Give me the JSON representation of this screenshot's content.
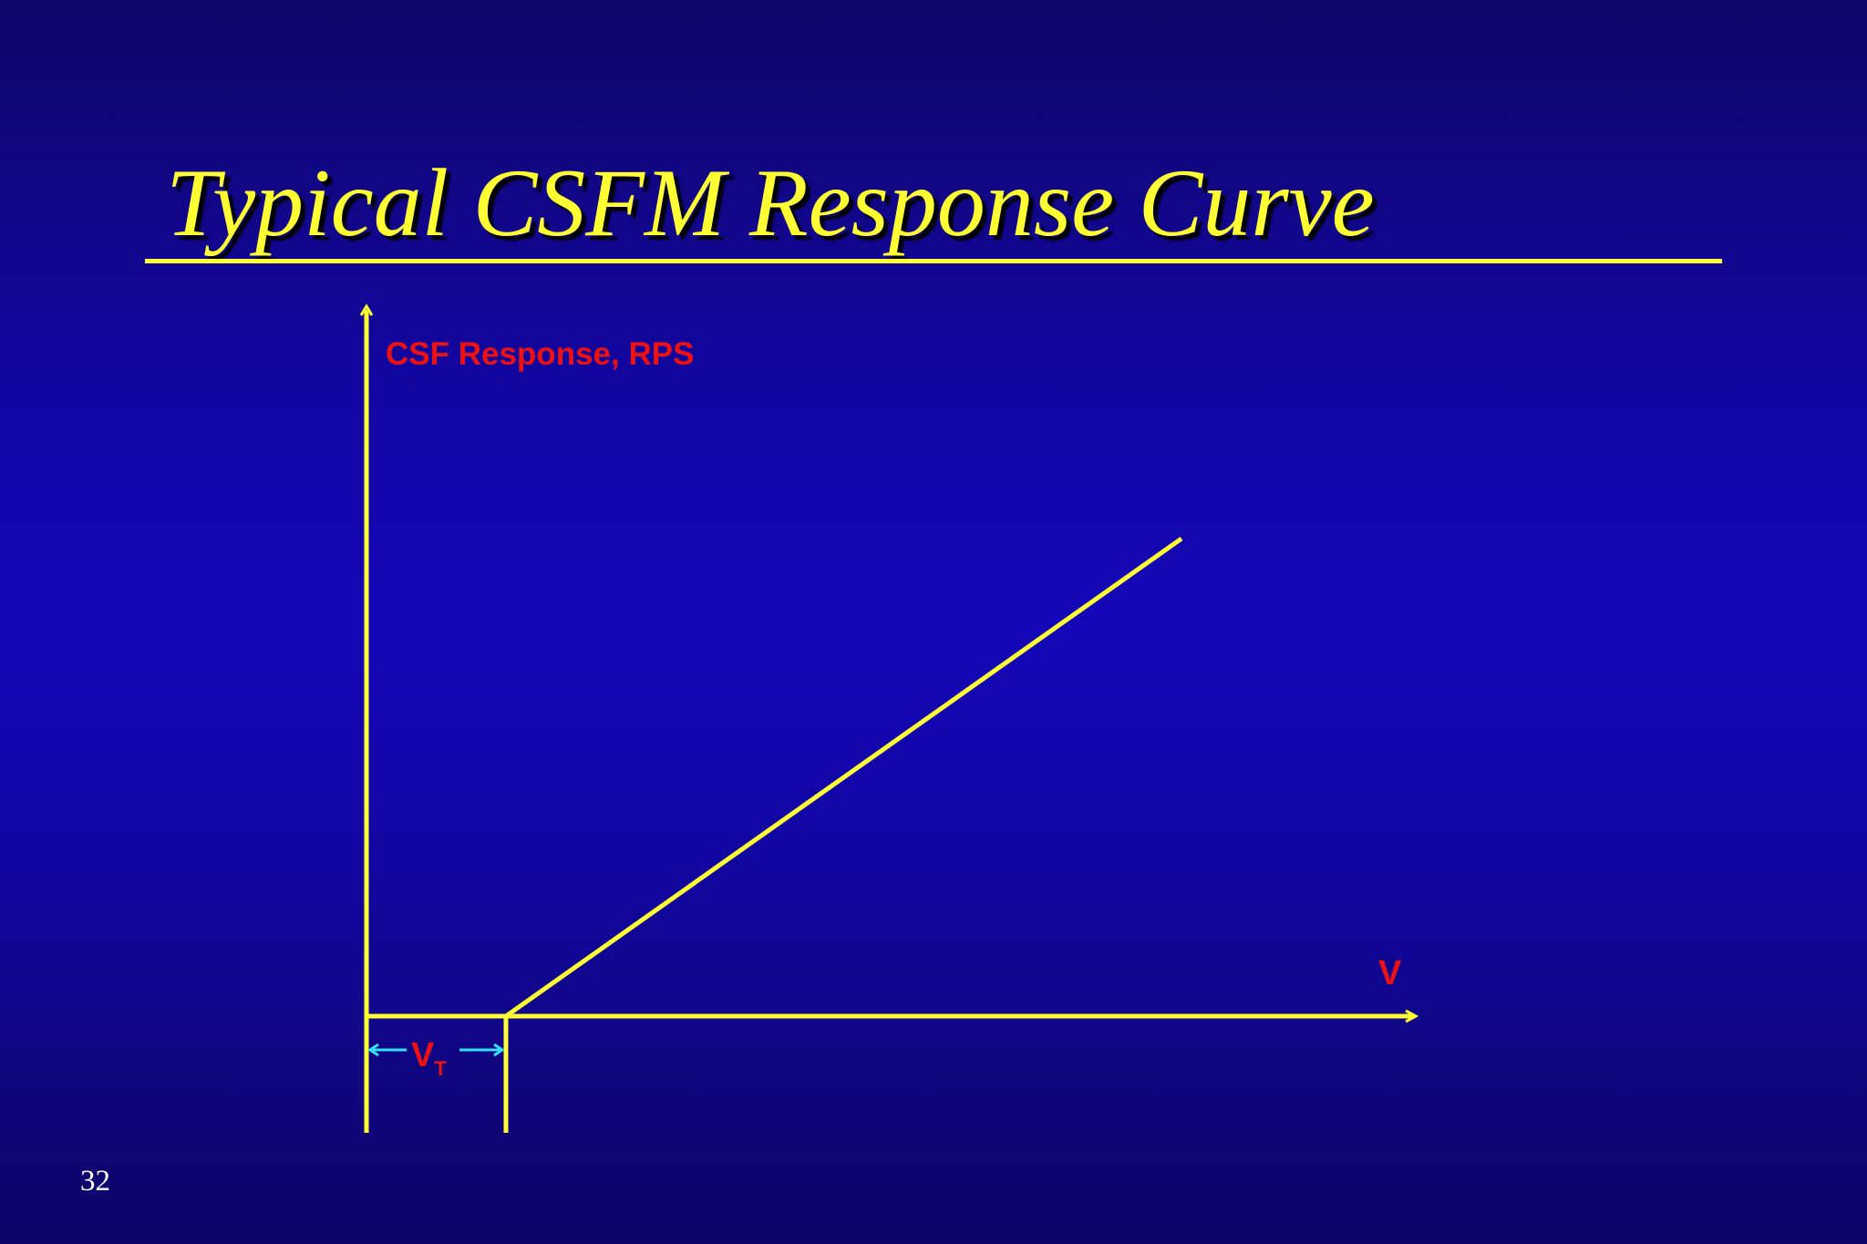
{
  "slide": {
    "title": "Typical CSFM Response Curve",
    "page_number": "32"
  },
  "diagram": {
    "y_axis_label": "CSF Response, RPS",
    "x_axis_label": "V",
    "threshold_label": "V",
    "threshold_subscript": "T",
    "colors": {
      "lines": "#ffff33",
      "labels": "#ee1111",
      "threshold_arrows": "#33e0ff"
    }
  }
}
